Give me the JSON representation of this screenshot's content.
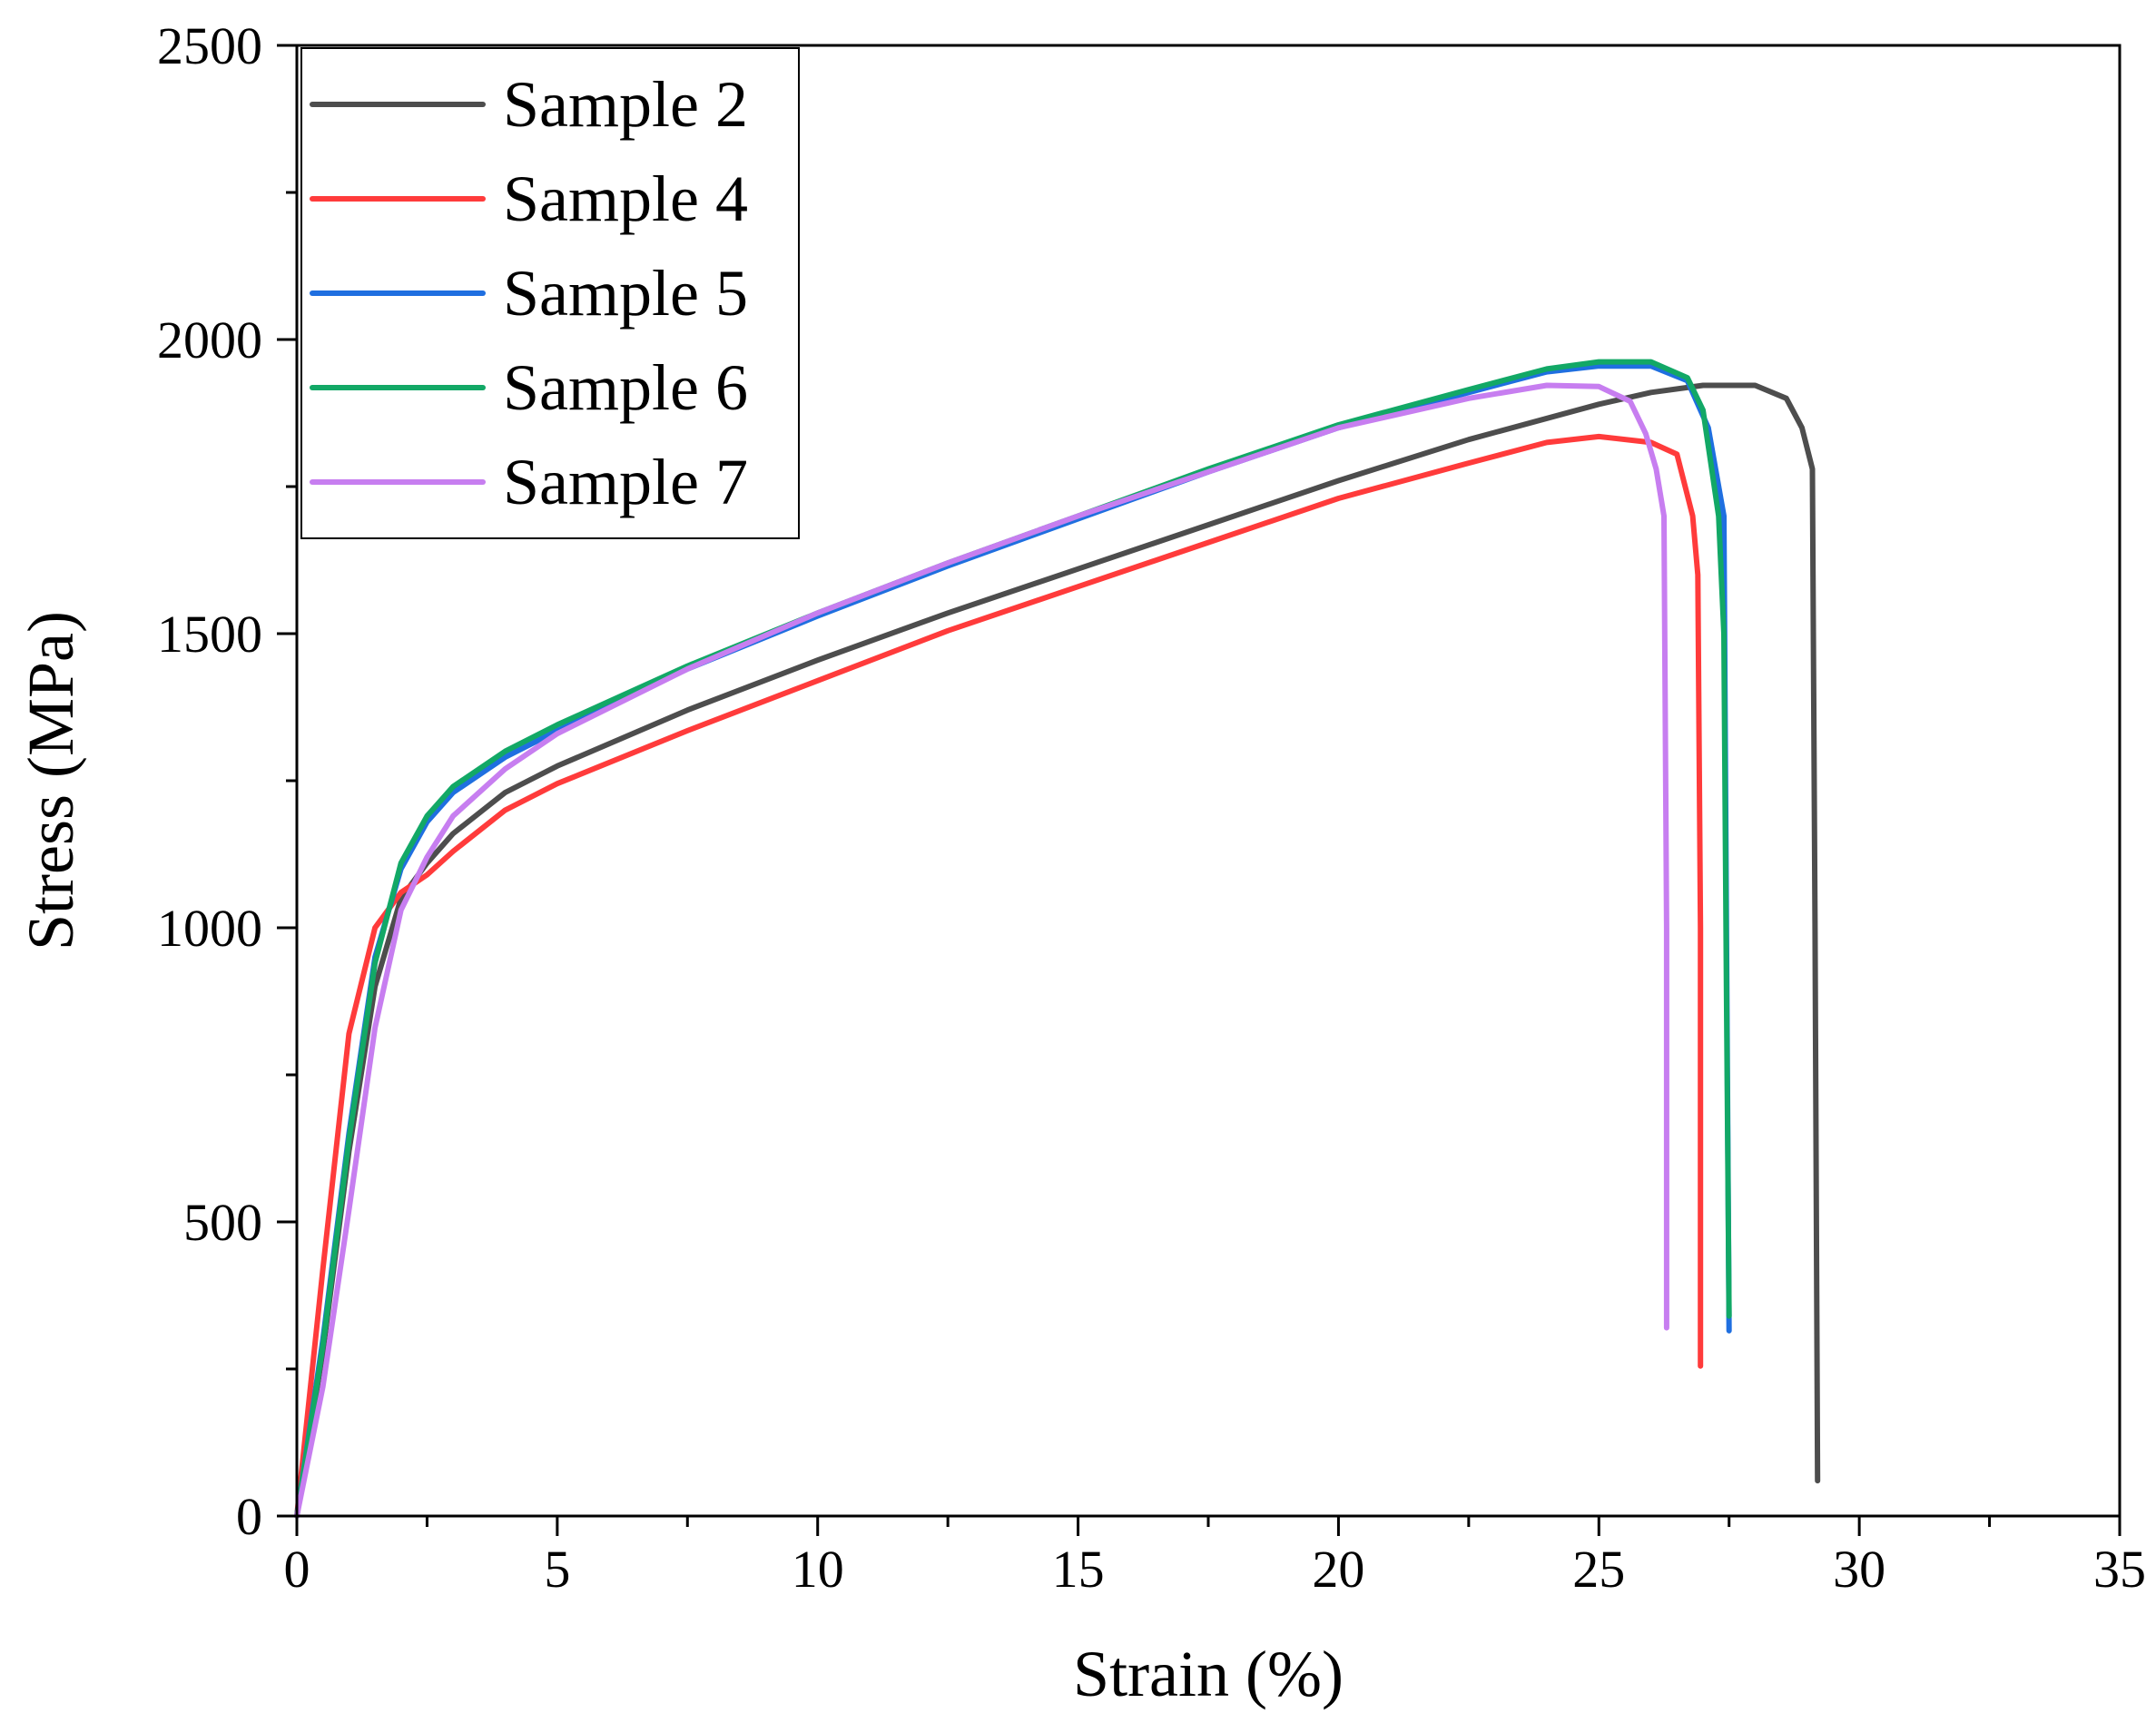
{
  "chart_data": {
    "type": "line",
    "title": "",
    "xlabel": "Strain (%)",
    "ylabel": "Stress (MPa)",
    "xlim": [
      0,
      35
    ],
    "ylim": [
      0,
      2500
    ],
    "x_ticks": [
      0,
      5,
      10,
      15,
      20,
      25,
      30,
      35
    ],
    "x_tick_labels": [
      "0",
      "5",
      "10",
      "15",
      "20",
      "25",
      "30",
      "35"
    ],
    "y_ticks": [
      0,
      500,
      1000,
      1500,
      2000,
      2500
    ],
    "y_tick_labels": [
      "0",
      "500",
      "1000",
      "1500",
      "2000",
      "2500"
    ],
    "grid": false,
    "legend_position": "top-left",
    "series": [
      {
        "name": "Sample 2",
        "color": "#4d4d4d",
        "points": [
          [
            0,
            0
          ],
          [
            0.5,
            280
          ],
          [
            1.0,
            620
          ],
          [
            1.5,
            900
          ],
          [
            2.0,
            1050
          ],
          [
            2.5,
            1110
          ],
          [
            3,
            1160
          ],
          [
            4,
            1230
          ],
          [
            5,
            1275
          ],
          [
            7.5,
            1370
          ],
          [
            10,
            1455
          ],
          [
            12.5,
            1535
          ],
          [
            15,
            1610
          ],
          [
            17.5,
            1685
          ],
          [
            20,
            1760
          ],
          [
            22.5,
            1830
          ],
          [
            25,
            1890
          ],
          [
            26,
            1910
          ],
          [
            27,
            1922
          ],
          [
            28,
            1922
          ],
          [
            28.6,
            1900
          ],
          [
            28.9,
            1850
          ],
          [
            29.1,
            1780
          ],
          [
            29.15,
            1000
          ],
          [
            29.2,
            60
          ]
        ]
      },
      {
        "name": "Sample 4",
        "color": "#ff3b3b",
        "points": [
          [
            0,
            0
          ],
          [
            0.5,
            420
          ],
          [
            1.0,
            820
          ],
          [
            1.5,
            1000
          ],
          [
            2.0,
            1060
          ],
          [
            2.5,
            1090
          ],
          [
            3,
            1130
          ],
          [
            4,
            1200
          ],
          [
            5,
            1245
          ],
          [
            7.5,
            1335
          ],
          [
            10,
            1420
          ],
          [
            12.5,
            1505
          ],
          [
            15,
            1580
          ],
          [
            17.5,
            1655
          ],
          [
            20,
            1730
          ],
          [
            22.5,
            1790
          ],
          [
            24,
            1825
          ],
          [
            25,
            1835
          ],
          [
            26,
            1825
          ],
          [
            26.5,
            1805
          ],
          [
            26.8,
            1700
          ],
          [
            26.9,
            1600
          ],
          [
            26.95,
            1000
          ],
          [
            26.95,
            255
          ]
        ]
      },
      {
        "name": "Sample 5",
        "color": "#1f6fe0",
        "points": [
          [
            0,
            0
          ],
          [
            0.5,
            300
          ],
          [
            1.0,
            650
          ],
          [
            1.5,
            950
          ],
          [
            2.0,
            1100
          ],
          [
            2.5,
            1180
          ],
          [
            3,
            1230
          ],
          [
            4,
            1290
          ],
          [
            5,
            1335
          ],
          [
            7.5,
            1440
          ],
          [
            10,
            1530
          ],
          [
            12.5,
            1615
          ],
          [
            15,
            1695
          ],
          [
            17.5,
            1775
          ],
          [
            20,
            1850
          ],
          [
            22.5,
            1910
          ],
          [
            24,
            1945
          ],
          [
            25,
            1955
          ],
          [
            26,
            1955
          ],
          [
            26.7,
            1930
          ],
          [
            27.1,
            1850
          ],
          [
            27.4,
            1700
          ],
          [
            27.45,
            1000
          ],
          [
            27.5,
            315
          ]
        ]
      },
      {
        "name": "Sample 6",
        "color": "#12a866",
        "points": [
          [
            0,
            0
          ],
          [
            0.5,
            290
          ],
          [
            1.0,
            640
          ],
          [
            1.5,
            940
          ],
          [
            2.0,
            1110
          ],
          [
            2.5,
            1190
          ],
          [
            3,
            1240
          ],
          [
            4,
            1300
          ],
          [
            5,
            1345
          ],
          [
            7.5,
            1445
          ],
          [
            10,
            1535
          ],
          [
            12.5,
            1620
          ],
          [
            15,
            1700
          ],
          [
            17.5,
            1780
          ],
          [
            20,
            1855
          ],
          [
            22.5,
            1915
          ],
          [
            24,
            1950
          ],
          [
            25,
            1962
          ],
          [
            26,
            1962
          ],
          [
            26.7,
            1935
          ],
          [
            27.0,
            1880
          ],
          [
            27.3,
            1700
          ],
          [
            27.4,
            1500
          ],
          [
            27.45,
            900
          ],
          [
            27.5,
            340
          ]
        ]
      },
      {
        "name": "Sample 7",
        "color": "#c77ef0",
        "points": [
          [
            0,
            0
          ],
          [
            0.5,
            220
          ],
          [
            1.0,
            520
          ],
          [
            1.5,
            830
          ],
          [
            2.0,
            1030
          ],
          [
            2.5,
            1120
          ],
          [
            3,
            1190
          ],
          [
            4,
            1270
          ],
          [
            5,
            1330
          ],
          [
            7.5,
            1440
          ],
          [
            10,
            1535
          ],
          [
            12.5,
            1620
          ],
          [
            15,
            1700
          ],
          [
            17.5,
            1775
          ],
          [
            20,
            1850
          ],
          [
            22.5,
            1900
          ],
          [
            24,
            1922
          ],
          [
            25,
            1920
          ],
          [
            25.6,
            1895
          ],
          [
            25.9,
            1840
          ],
          [
            26.1,
            1780
          ],
          [
            26.25,
            1700
          ],
          [
            26.3,
            1000
          ],
          [
            26.3,
            320
          ]
        ]
      }
    ]
  }
}
